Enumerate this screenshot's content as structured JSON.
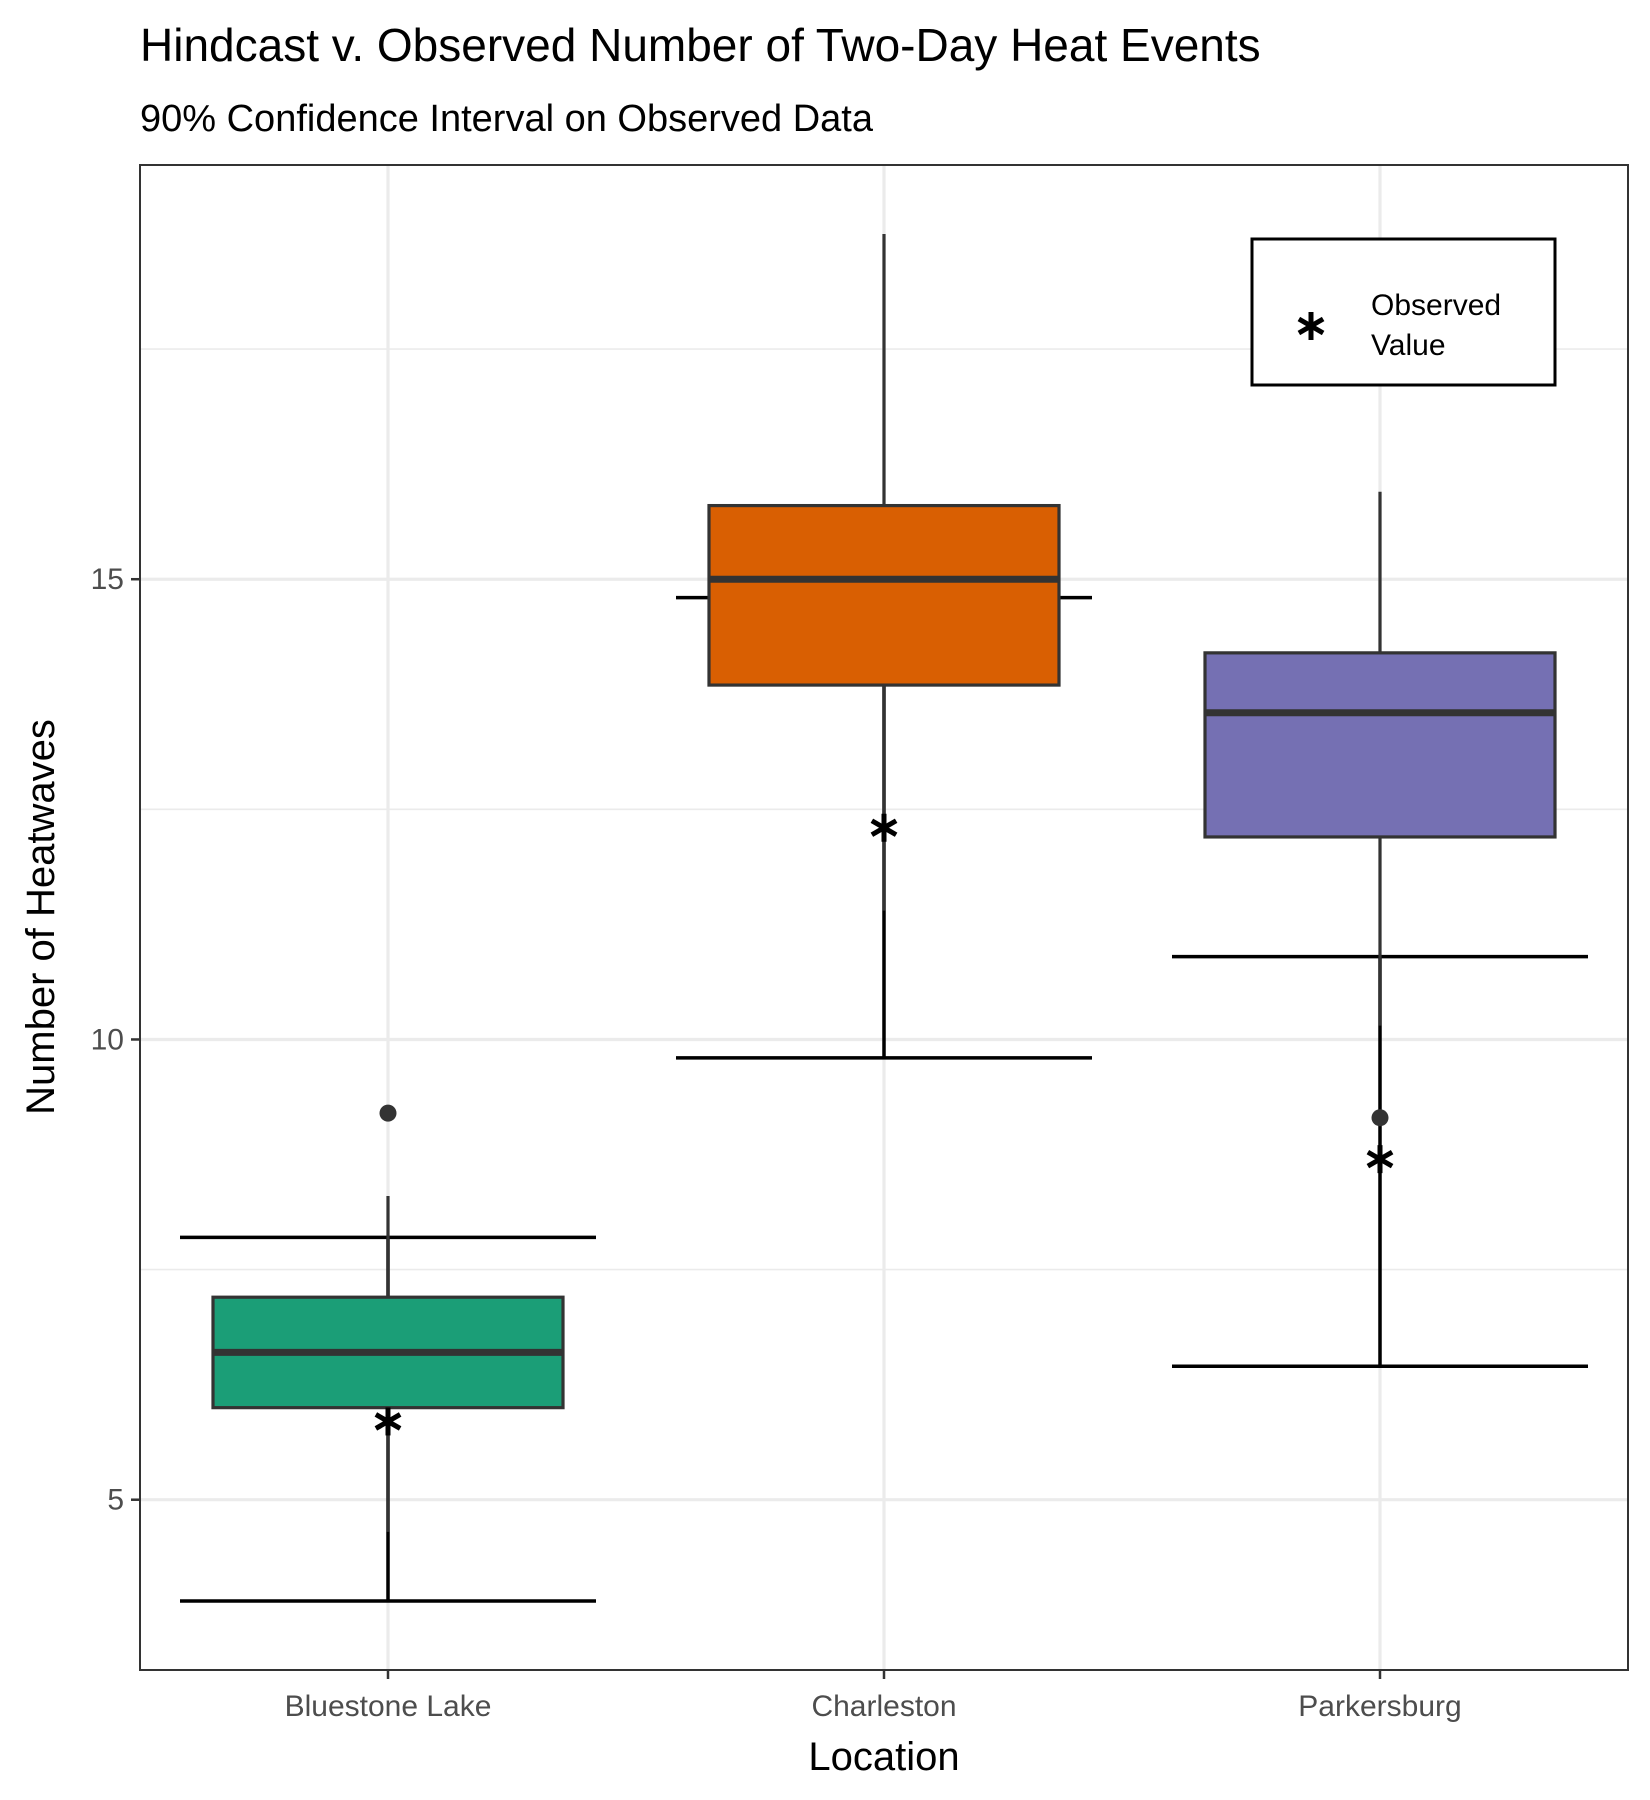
{
  "chart_data": {
    "type": "boxplot",
    "title": "Hindcast v. Observed Number of Two-Day Heat Events",
    "subtitle": "90% Confidence Interval on Observed Data",
    "xlabel": "Location",
    "ylabel": "Number of Heatwaves",
    "ylim": [
      3.15,
      19.5
    ],
    "y_ticks": [
      5,
      10,
      15
    ],
    "grid": true,
    "legend": {
      "placement": "top-right",
      "entries": [
        {
          "symbol": "asterisk",
          "label_lines": [
            "Observed",
            "Value"
          ]
        }
      ]
    },
    "categories": [
      "Bluestone Lake",
      "Charleston",
      "Parkersburg"
    ],
    "boxes": [
      {
        "category": "Bluestone Lake",
        "color": "#1b9e77",
        "lower_whisker": 4.65,
        "q1": 6.0,
        "median": 6.6,
        "q3": 7.2,
        "upper_whisker": 8.3,
        "outliers": [
          9.2
        ]
      },
      {
        "category": "Charleston",
        "color": "#d95f02",
        "lower_whisker": 11.4,
        "q1": 13.85,
        "median": 15.0,
        "q3": 15.8,
        "upper_whisker": 18.75,
        "outliers": []
      },
      {
        "category": "Parkersburg",
        "color": "#7570b3",
        "lower_whisker": 10.15,
        "q1": 12.2,
        "median": 13.55,
        "q3": 14.2,
        "upper_whisker": 15.95,
        "outliers": [
          9.15
        ]
      }
    ],
    "observed": [
      {
        "category": "Bluestone Lake",
        "value": 5.85,
        "ci_low": 3.9,
        "ci_high": 7.85
      },
      {
        "category": "Charleston",
        "value": 12.3,
        "ci_low": 9.8,
        "ci_high": 14.8
      },
      {
        "category": "Parkersburg",
        "value": 8.7,
        "ci_low": 6.45,
        "ci_high": 10.9
      }
    ]
  }
}
